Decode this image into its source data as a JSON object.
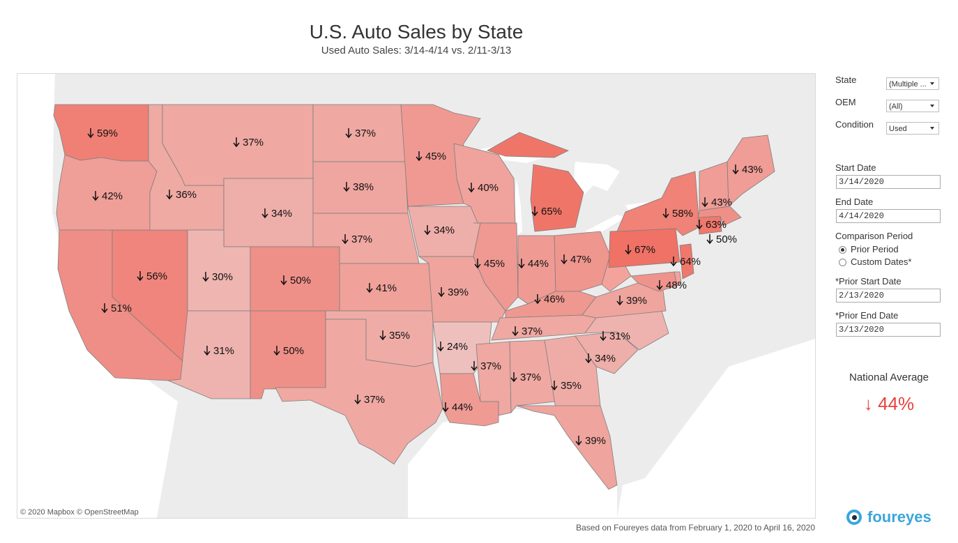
{
  "header": {
    "title": "U.S. Auto Sales by State",
    "subtitle": "Used Auto Sales: 3/14-4/14 vs. 2/11-3/13"
  },
  "map": {
    "attribution": "© 2020 Mapbox  © OpenStreetMap",
    "arrow_icon": "down-arrow-icon",
    "states": [
      {
        "name": "Washington",
        "value": 59,
        "label": "59%"
      },
      {
        "name": "Oregon",
        "value": 42,
        "label": "42%"
      },
      {
        "name": "California",
        "value": 51,
        "label": "51%"
      },
      {
        "name": "Nevada",
        "value": 56,
        "label": "56%"
      },
      {
        "name": "Idaho",
        "value": 36,
        "label": "36%"
      },
      {
        "name": "Montana",
        "value": 37,
        "label": "37%"
      },
      {
        "name": "Wyoming",
        "value": 34,
        "label": "34%"
      },
      {
        "name": "Utah",
        "value": 30,
        "label": "30%"
      },
      {
        "name": "Arizona",
        "value": 31,
        "label": "31%"
      },
      {
        "name": "Colorado",
        "value": 50,
        "label": "50%"
      },
      {
        "name": "New Mexico",
        "value": 50,
        "label": "50%"
      },
      {
        "name": "North Dakota",
        "value": 37,
        "label": "37%"
      },
      {
        "name": "South Dakota",
        "value": 38,
        "label": "38%"
      },
      {
        "name": "Nebraska",
        "value": 37,
        "label": "37%"
      },
      {
        "name": "Kansas",
        "value": 41,
        "label": "41%"
      },
      {
        "name": "Oklahoma",
        "value": 35,
        "label": "35%"
      },
      {
        "name": "Texas",
        "value": 37,
        "label": "37%"
      },
      {
        "name": "Minnesota",
        "value": 45,
        "label": "45%"
      },
      {
        "name": "Iowa",
        "value": 34,
        "label": "34%"
      },
      {
        "name": "Missouri",
        "value": 39,
        "label": "39%"
      },
      {
        "name": "Arkansas",
        "value": 24,
        "label": "24%"
      },
      {
        "name": "Louisiana",
        "value": 44,
        "label": "44%"
      },
      {
        "name": "Wisconsin",
        "value": 40,
        "label": "40%"
      },
      {
        "name": "Illinois",
        "value": 45,
        "label": "45%"
      },
      {
        "name": "Michigan",
        "value": 65,
        "label": "65%"
      },
      {
        "name": "Indiana",
        "value": 44,
        "label": "44%"
      },
      {
        "name": "Ohio",
        "value": 47,
        "label": "47%"
      },
      {
        "name": "Kentucky",
        "value": 46,
        "label": "46%"
      },
      {
        "name": "Tennessee",
        "value": 37,
        "label": "37%"
      },
      {
        "name": "Mississippi",
        "value": 37,
        "label": "37%"
      },
      {
        "name": "Alabama",
        "value": 37,
        "label": "37%"
      },
      {
        "name": "Georgia",
        "value": 35,
        "label": "35%"
      },
      {
        "name": "Florida",
        "value": 39,
        "label": "39%"
      },
      {
        "name": "South Carolina",
        "value": 34,
        "label": "34%"
      },
      {
        "name": "North Carolina",
        "value": 31,
        "label": "31%"
      },
      {
        "name": "Virginia",
        "value": 39,
        "label": "39%"
      },
      {
        "name": "West Virginia",
        "value": null,
        "label": ""
      },
      {
        "name": "Pennsylvania",
        "value": 67,
        "label": "67%"
      },
      {
        "name": "New York",
        "value": 58,
        "label": "58%"
      },
      {
        "name": "New Jersey",
        "value": 64,
        "label": "64%"
      },
      {
        "name": "Maryland",
        "value": 48,
        "label": "48%"
      },
      {
        "name": "Delaware",
        "value": null,
        "label": ""
      },
      {
        "name": "Connecticut",
        "value": 63,
        "label": "63%"
      },
      {
        "name": "Massachusetts",
        "value": 50,
        "label": "50%"
      },
      {
        "name": "Vermont/NH",
        "value": 43,
        "label": "43%"
      },
      {
        "name": "Maine",
        "value": 43,
        "label": "43%"
      }
    ]
  },
  "filters": {
    "state": {
      "label": "State",
      "value": "(Multiple ..."
    },
    "oem": {
      "label": "OEM",
      "value": "(All)"
    },
    "condition": {
      "label": "Condition",
      "value": "Used"
    },
    "start_date": {
      "label": "Start Date",
      "value": "3/14/2020"
    },
    "end_date": {
      "label": "End Date",
      "value": "4/14/2020"
    },
    "comparison": {
      "label": "Comparison Period",
      "options": [
        "Prior Period",
        "Custom Dates*"
      ],
      "selected": "Prior Period"
    },
    "prior_start": {
      "label": "*Prior Start Date",
      "value": "2/13/2020"
    },
    "prior_end": {
      "label": "*Prior End Date",
      "value": "3/13/2020"
    }
  },
  "national": {
    "label": "National Average",
    "value": "↓ 44%",
    "color": "#e8413e"
  },
  "footer": {
    "note": "Based on Foureyes data from February 1, 2020 to April 16, 2020",
    "logo_text": "foureyes",
    "logo_color": "#3aa6dc"
  },
  "colors": {
    "land": "#ececec",
    "water": "#ffffff",
    "scale_low": "#eec0bd",
    "scale_high": "#f07165"
  }
}
